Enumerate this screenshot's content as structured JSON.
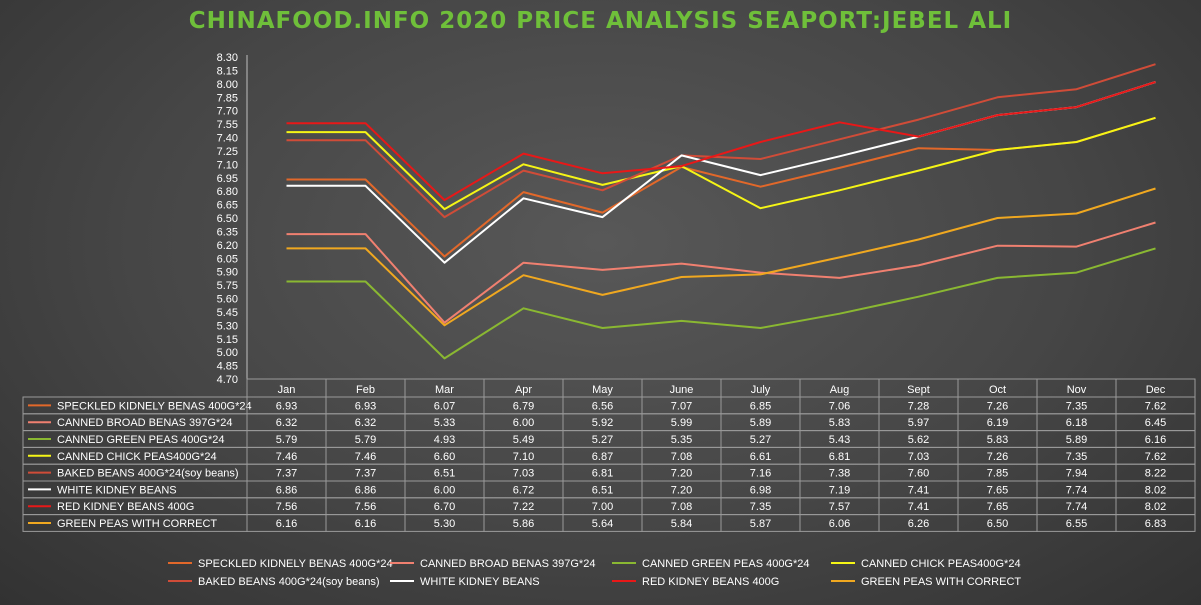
{
  "colors": {
    "title": "#6fbf3a",
    "text": "#ffffff",
    "axis": "#bfbfbf",
    "table_border": "#9a9a9a"
  },
  "chart_data": {
    "type": "line",
    "title": "CHINAFOOD.INFO   2020 PRICE ANALYSIS   SEAPORT:JEBEL ALI",
    "categories": [
      "Jan",
      "Feb",
      "Mar",
      "Apr",
      "May",
      "June",
      "July",
      "Aug",
      "Sept",
      "Oct",
      "Nov",
      "Dec"
    ],
    "ylim": [
      4.7,
      8.3
    ],
    "yticks": [
      "8.30",
      "8.15",
      "8.00",
      "7.85",
      "7.70",
      "7.55",
      "7.40",
      "7.25",
      "7.10",
      "6.95",
      "6.80",
      "6.65",
      "6.50",
      "6.35",
      "6.20",
      "6.05",
      "5.90",
      "5.75",
      "5.60",
      "5.45",
      "5.30",
      "5.15",
      "5.00",
      "4.85",
      "4.70"
    ],
    "legend_position": "bottom",
    "series": [
      {
        "name": "SPECKLED KIDNELY BENAS 400G*24",
        "color": "#e2682a",
        "values": [
          6.93,
          6.93,
          6.07,
          6.79,
          6.56,
          7.07,
          6.85,
          7.06,
          7.28,
          7.26,
          7.35,
          7.62
        ],
        "labels": [
          "6.93",
          "6.93",
          "6.07",
          "6.79",
          "6.56",
          "7.07",
          "6.85",
          "7.06",
          "7.28",
          "7.26",
          "7.35",
          "7.62"
        ]
      },
      {
        "name": "CANNED BROAD BENAS 397G*24",
        "color": "#f08070",
        "values": [
          6.32,
          6.32,
          5.33,
          6.0,
          5.92,
          5.99,
          5.89,
          5.83,
          5.97,
          6.19,
          6.18,
          6.45
        ],
        "labels": [
          "6.32",
          "6.32",
          "5.33",
          "6.00",
          "5.92",
          "5.99",
          "5.89",
          "5.83",
          "5.97",
          "6.19",
          "6.18",
          "6.45"
        ]
      },
      {
        "name": "CANNED GREEN PEAS 400G*24",
        "color": "#8ab832",
        "values": [
          5.79,
          5.79,
          4.93,
          5.49,
          5.27,
          5.35,
          5.27,
          5.43,
          5.62,
          5.83,
          5.89,
          6.16
        ],
        "labels": [
          "5.79",
          "5.79",
          "4.93",
          "5.49",
          "5.27",
          "5.35",
          "5.27",
          "5.43",
          "5.62",
          "5.83",
          "5.89",
          "6.16"
        ]
      },
      {
        "name": "CANNED CHICK PEAS400G*24",
        "color": "#f5f516",
        "values": [
          7.46,
          7.46,
          6.6,
          7.1,
          6.87,
          7.08,
          6.61,
          6.81,
          7.03,
          7.26,
          7.35,
          7.62
        ],
        "labels": [
          "7.46",
          "7.46",
          "6.60",
          "7.10",
          "6.87",
          "7.08",
          "6.61",
          "6.81",
          "7.03",
          "7.26",
          "7.35",
          "7.62"
        ]
      },
      {
        "name": "BAKED BEANS 400G*24(soy beans)",
        "color": "#d04c38",
        "values": [
          7.37,
          7.37,
          6.51,
          7.03,
          6.81,
          7.2,
          7.16,
          7.38,
          7.6,
          7.85,
          7.94,
          8.22
        ],
        "labels": [
          "7.37",
          "7.37",
          "6.51",
          "7.03",
          "6.81",
          "7.20",
          "7.16",
          "7.38",
          "7.60",
          "7.85",
          "7.94",
          "8.22"
        ]
      },
      {
        "name": "WHITE KIDNEY BEANS",
        "color": "#ffffff",
        "values": [
          6.86,
          6.86,
          6.0,
          6.72,
          6.51,
          7.2,
          6.98,
          7.19,
          7.41,
          7.65,
          7.74,
          8.02
        ],
        "labels": [
          "6.86",
          "6.86",
          "6.00",
          "6.72",
          "6.51",
          "7.20",
          "6.98",
          "7.19",
          "7.41",
          "7.65",
          "7.74",
          "8.02"
        ]
      },
      {
        "name": "RED KIDNEY BEANS 400G",
        "color": "#e81818",
        "values": [
          7.56,
          7.56,
          6.7,
          7.22,
          7.0,
          7.08,
          7.35,
          7.57,
          7.41,
          7.65,
          7.74,
          8.02
        ],
        "labels": [
          "7.56",
          "7.56",
          "6.70",
          "7.22",
          "7.00",
          "7.08",
          "7.35",
          "7.57",
          "7.41",
          "7.65",
          "7.74",
          "8.02"
        ]
      },
      {
        "name": "GREEN PEAS WITH CORRECT",
        "color": "#f0a820",
        "values": [
          6.16,
          6.16,
          5.3,
          5.86,
          5.64,
          5.84,
          5.87,
          6.06,
          6.26,
          6.5,
          6.55,
          6.83
        ],
        "labels": [
          "6.16",
          "6.16",
          "5.30",
          "5.86",
          "5.64",
          "5.84",
          "5.87",
          "6.06",
          "6.26",
          "6.50",
          "6.55",
          "6.83"
        ]
      }
    ]
  }
}
